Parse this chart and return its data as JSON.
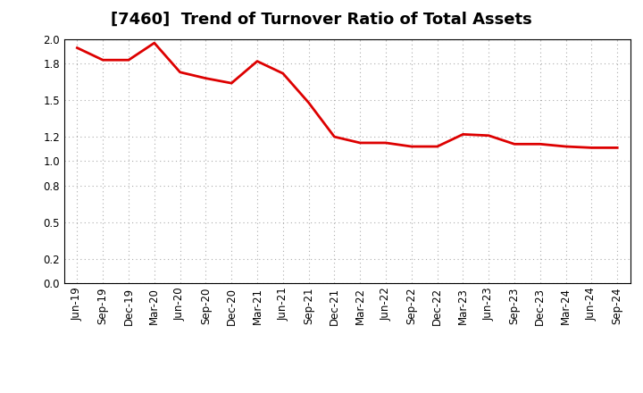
{
  "title": "[7460]  Trend of Turnover Ratio of Total Assets",
  "line_color": "#dd0000",
  "line_width": 2.0,
  "background_color": "#ffffff",
  "grid_color": "#aaaaaa",
  "ylim": [
    0.0,
    2.0
  ],
  "yticks": [
    0.0,
    0.2,
    0.5,
    0.8,
    1.0,
    1.2,
    1.5,
    1.8,
    2.0
  ],
  "labels": [
    "Jun-19",
    "Sep-19",
    "Dec-19",
    "Mar-20",
    "Jun-20",
    "Sep-20",
    "Dec-20",
    "Mar-21",
    "Jun-21",
    "Sep-21",
    "Dec-21",
    "Mar-22",
    "Jun-22",
    "Sep-22",
    "Dec-22",
    "Mar-23",
    "Jun-23",
    "Sep-23",
    "Dec-23",
    "Mar-24",
    "Jun-24",
    "Sep-24"
  ],
  "values": [
    1.93,
    1.83,
    1.83,
    1.97,
    1.73,
    1.68,
    1.64,
    1.82,
    1.72,
    1.48,
    1.2,
    1.15,
    1.15,
    1.12,
    1.12,
    1.22,
    1.21,
    1.14,
    1.14,
    1.12,
    1.11,
    1.11
  ],
  "figsize": [
    7.2,
    4.4
  ],
  "dpi": 100,
  "title_fontsize": 13,
  "tick_fontsize": 8.5
}
